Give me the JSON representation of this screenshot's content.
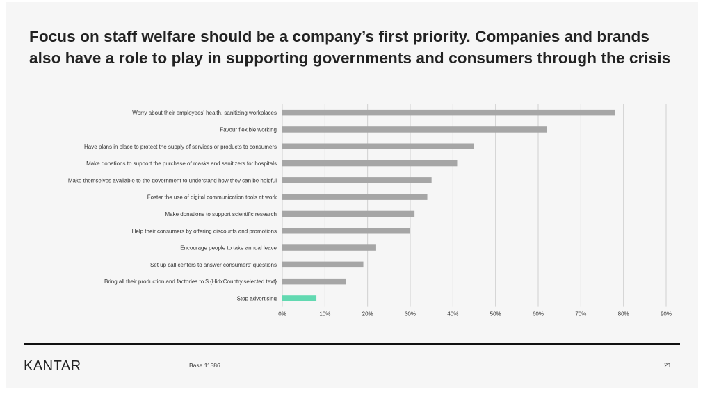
{
  "slide": {
    "title": "Focus on staff welfare should be a company’s first priority.  Companies and brands also have a role to play in supporting governments and consumers through the crisis",
    "base": "Base 11586",
    "page_number": "21",
    "logo": "KANTAR"
  },
  "colors": {
    "bar": "#a6a6a6",
    "highlight_bar": "#62d9b1",
    "grid": "#d0d0d0",
    "text": "#333333"
  },
  "chart_data": {
    "type": "bar",
    "orientation": "horizontal",
    "categories": [
      "Worry about their employees' health, sanitizing workplaces",
      "Favour flexible working",
      "Have plans in place to protect the supply of services or products to consumers",
      "Make donations to support the purchase of masks and sanitizers for hospitals",
      "Make themselves available to the government to understand how they can be helpful",
      "Foster the use of digital communication tools at work",
      "Make donations to support scientific research",
      "Help their consumers by offering discounts and promotions",
      "Encourage people to take annual leave",
      "Set up call centers to answer consumers' questions",
      "Bring all their production and factories to $ {HidxCountry.selected.text}",
      "Stop advertising"
    ],
    "values": [
      78,
      62,
      45,
      41,
      35,
      34,
      31,
      30,
      22,
      19,
      15,
      8
    ],
    "highlight_index": 11,
    "xlim": [
      0,
      90
    ],
    "xticks": [
      "0%",
      "10%",
      "20%",
      "30%",
      "40%",
      "50%",
      "60%",
      "70%",
      "80%",
      "90%"
    ],
    "grid": true,
    "legend": "none"
  }
}
